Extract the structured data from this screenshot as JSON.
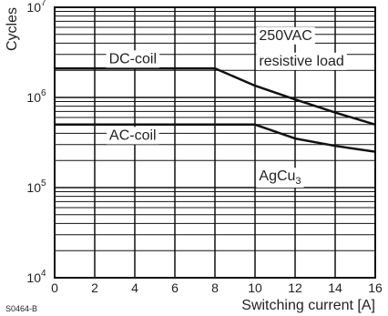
{
  "chart_data": {
    "type": "line",
    "xlabel": "Switching current [A]",
    "ylabel": "Cycles",
    "x_ticks": [
      0,
      2,
      4,
      6,
      8,
      10,
      12,
      14,
      16
    ],
    "y_scale": "log",
    "y_ticks": [
      {
        "value": 10000,
        "base": "10",
        "exp": "4"
      },
      {
        "value": 100000,
        "base": "10",
        "exp": "5"
      },
      {
        "value": 1000000,
        "base": "10",
        "exp": "6"
      },
      {
        "value": 10000000,
        "base": "10",
        "exp": "7"
      }
    ],
    "xlim": [
      0,
      16
    ],
    "ylim": [
      10000,
      10000000
    ],
    "grid": true,
    "series": [
      {
        "name": "DC-coil",
        "x": [
          0,
          8,
          10,
          12,
          14,
          16
        ],
        "y": [
          2100000,
          2100000,
          1350000,
          950000,
          680000,
          500000
        ]
      },
      {
        "name": "AC-coil",
        "x": [
          0,
          10,
          12,
          14,
          16
        ],
        "y": [
          500000,
          500000,
          350000,
          290000,
          250000
        ]
      }
    ],
    "annotations": [
      {
        "text": "250VAC",
        "x": 10.2,
        "y": 4800000
      },
      {
        "text": "resistive load",
        "x": 10.2,
        "y": 2500000
      },
      {
        "text_main": "AgCu",
        "text_sub": "3",
        "x": 10.2,
        "y": 132000
      }
    ],
    "figure_code": "S0464-B"
  }
}
